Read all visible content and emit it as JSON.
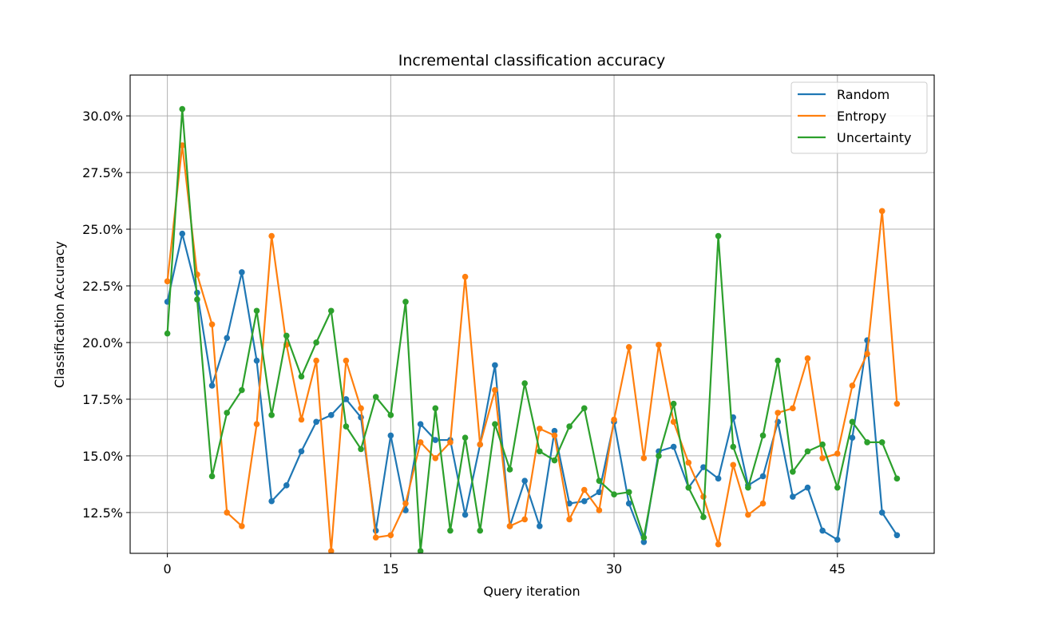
{
  "chart_data": {
    "type": "line",
    "title": "Incremental classification accuracy",
    "xlabel": "Query iteration",
    "ylabel": "Classification Accuracy",
    "xlim": [
      -2.5,
      51.5
    ],
    "ylim": [
      10.7,
      31.8
    ],
    "xticks": [
      0,
      15,
      30,
      45
    ],
    "xtick_labels": [
      "0",
      "15",
      "30",
      "45"
    ],
    "yticks": [
      12.5,
      15.0,
      17.5,
      20.0,
      22.5,
      25.0,
      27.5,
      30.0
    ],
    "ytick_labels": [
      "12.5%",
      "15.0%",
      "17.5%",
      "20.0%",
      "22.5%",
      "25.0%",
      "27.5%",
      "30.0%"
    ],
    "grid": true,
    "legend_position": "top-right",
    "x": [
      0,
      1,
      2,
      3,
      4,
      5,
      6,
      7,
      8,
      9,
      10,
      11,
      12,
      13,
      14,
      15,
      16,
      17,
      18,
      19,
      20,
      21,
      22,
      23,
      24,
      25,
      26,
      27,
      28,
      29,
      30,
      31,
      32,
      33,
      34,
      35,
      36,
      37,
      38,
      39,
      40,
      41,
      42,
      43,
      44,
      45,
      46,
      47,
      48,
      49
    ],
    "series": [
      {
        "name": "Random",
        "color": "#1f77b4",
        "values": [
          21.8,
          24.8,
          22.2,
          18.1,
          20.2,
          23.1,
          19.2,
          13.0,
          13.7,
          15.2,
          16.5,
          16.8,
          17.5,
          16.7,
          11.7,
          15.9,
          12.6,
          16.4,
          15.7,
          15.7,
          12.4,
          15.5,
          19.0,
          11.9,
          13.9,
          11.9,
          16.1,
          12.9,
          13.0,
          13.4,
          16.5,
          12.9,
          11.2,
          15.2,
          15.4,
          13.6,
          14.5,
          14.0,
          16.7,
          13.7,
          14.1,
          16.5,
          13.2,
          13.6,
          11.7,
          11.3,
          15.8,
          20.1,
          12.5,
          11.5
        ]
      },
      {
        "name": "Entropy",
        "color": "#ff7f0e",
        "values": [
          22.7,
          28.7,
          23.0,
          20.8,
          12.5,
          11.9,
          16.4,
          24.7,
          19.9,
          16.6,
          19.2,
          10.8,
          19.2,
          17.1,
          11.4,
          11.5,
          12.9,
          15.6,
          14.9,
          15.6,
          22.9,
          15.5,
          17.9,
          11.9,
          12.2,
          16.2,
          15.9,
          12.2,
          13.5,
          12.6,
          16.6,
          19.8,
          14.9,
          19.9,
          16.5,
          14.7,
          13.2,
          11.1,
          14.6,
          12.4,
          12.9,
          16.9,
          17.1,
          19.3,
          14.9,
          15.1,
          18.1,
          19.5,
          25.8,
          17.3
        ]
      },
      {
        "name": "Uncertainty",
        "color": "#2ca02c",
        "values": [
          20.4,
          30.3,
          21.9,
          14.1,
          16.9,
          17.9,
          21.4,
          16.8,
          20.3,
          18.5,
          20.0,
          21.4,
          16.3,
          15.3,
          17.6,
          16.8,
          21.8,
          10.8,
          17.1,
          11.7,
          15.8,
          11.7,
          16.4,
          14.4,
          18.2,
          15.2,
          14.8,
          16.3,
          17.1,
          13.9,
          13.3,
          13.4,
          11.4,
          15.0,
          17.3,
          13.6,
          12.3,
          24.7,
          15.4,
          13.6,
          15.9,
          19.2,
          14.3,
          15.2,
          15.5,
          13.6,
          16.5,
          15.6,
          15.6,
          14.0
        ]
      }
    ]
  }
}
